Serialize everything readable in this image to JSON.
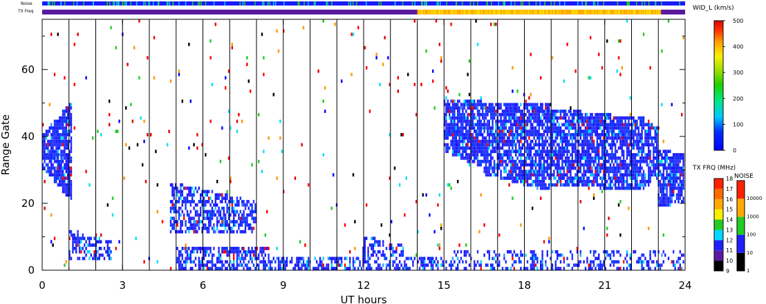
{
  "labels": {
    "noise": "Noise",
    "txfreq": "TX Freq"
  },
  "chart_data": {
    "type": "heatmap",
    "xlabel": "UT hours",
    "ylabel": "Range Gate",
    "xlim": [
      0,
      24
    ],
    "ylim": [
      0,
      75
    ],
    "x_ticks": [
      "0",
      "3",
      "6",
      "9",
      "12",
      "15",
      "18",
      "21",
      "24"
    ],
    "y_ticks": [
      "0",
      "20",
      "40",
      "60"
    ],
    "hour_markers": [
      1,
      2,
      3,
      4,
      5,
      6,
      7,
      8,
      9,
      10,
      11,
      12,
      13,
      14,
      15,
      16,
      17,
      18,
      19,
      20,
      21,
      22,
      23
    ],
    "colorbar": {
      "title": "WID_L (km/s)",
      "min": 0,
      "max": 500,
      "ticks": [
        "0",
        "100",
        "200",
        "300",
        "400",
        "500"
      ]
    },
    "txfreq_scale": {
      "title": "TX FRQ (MHz)",
      "ticks": [
        "9",
        "10",
        "11",
        "12",
        "13",
        "14",
        "15",
        "16",
        "17",
        "18"
      ]
    },
    "noise_scale": {
      "title": "NOISE",
      "ticks": [
        "1",
        "10",
        "100",
        "1000",
        "10000"
      ]
    },
    "txfreq_track": [
      {
        "from": 0,
        "to": 14,
        "mhz": 10
      },
      {
        "from": 14,
        "to": 23.1,
        "mhz": 15
      },
      {
        "from": 23.1,
        "to": 24,
        "mhz": 10
      }
    ],
    "noise_level": 10,
    "echo_regions": [
      {
        "t0": 0.0,
        "t1": 1.1,
        "g_low": [
          30,
          20
        ],
        "g_high": [
          40,
          50
        ],
        "density": 0.85
      },
      {
        "t0": 1.0,
        "t1": 2.6,
        "g_low": [
          3,
          3
        ],
        "g_high": [
          12,
          8
        ],
        "density": 0.5
      },
      {
        "t0": 4.8,
        "t1": 8.0,
        "g_low": [
          11,
          11
        ],
        "g_high": [
          26,
          20
        ],
        "density": 0.6
      },
      {
        "t0": 5.0,
        "t1": 8.5,
        "g_low": [
          0,
          0
        ],
        "g_high": [
          6,
          6
        ],
        "density": 0.55
      },
      {
        "t0": 8.0,
        "t1": 15.0,
        "g_low": [
          0,
          0
        ],
        "g_high": [
          4,
          3
        ],
        "density": 0.5
      },
      {
        "t0": 12.0,
        "t1": 13.5,
        "g_low": [
          0,
          0
        ],
        "g_high": [
          10,
          7
        ],
        "density": 0.45
      },
      {
        "t0": 15.0,
        "t1": 16.5,
        "g_low": [
          35,
          30
        ],
        "g_high": [
          50,
          50
        ],
        "density": 0.8
      },
      {
        "t0": 16.5,
        "t1": 19.0,
        "g_low": [
          28,
          23
        ],
        "g_high": [
          49,
          50
        ],
        "density": 0.8
      },
      {
        "t0": 19.0,
        "t1": 22.5,
        "g_low": [
          25,
          23
        ],
        "g_high": [
          48,
          45
        ],
        "density": 0.8
      },
      {
        "t0": 22.5,
        "t1": 23.0,
        "g_low": [
          24,
          27
        ],
        "g_high": [
          45,
          42
        ],
        "density": 0.75
      },
      {
        "t0": 23.0,
        "t1": 24.0,
        "g_low": [
          18,
          20
        ],
        "g_high": [
          36,
          34
        ],
        "density": 0.8
      },
      {
        "t0": 15.0,
        "t1": 24.0,
        "g_low": [
          0,
          0
        ],
        "g_high": [
          5,
          5
        ],
        "density": 0.35
      }
    ],
    "scatter_density": 0.012
  }
}
